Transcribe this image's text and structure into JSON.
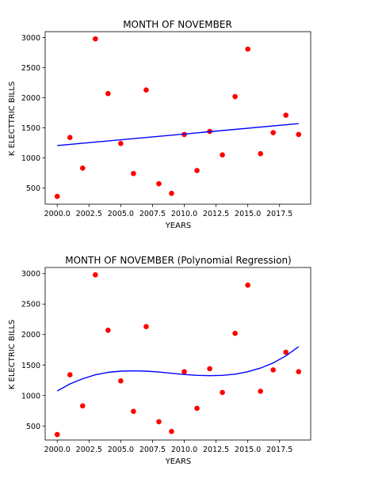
{
  "chart_data": [
    {
      "type": "scatter",
      "title": "MONTH OF NOVEMBER",
      "xlabel": "YEARS",
      "ylabel": "K ELECTTRIC BILLS",
      "xlim": [
        1999.05,
        2019.95
      ],
      "ylim": [
        230,
        3100
      ],
      "xticks": [
        "2000.0",
        "2002.5",
        "2005.0",
        "2007.5",
        "2010.0",
        "2012.5",
        "2015.0",
        "2017.5"
      ],
      "yticks": [
        "500",
        "1000",
        "1500",
        "2000",
        "2500",
        "3000"
      ],
      "grid": false,
      "colors": {
        "points": "#ff0000",
        "fit": "#0000ff"
      },
      "series": [
        {
          "kind": "points",
          "x": [
            2000,
            2001,
            2002,
            2003,
            2004,
            2005,
            2006,
            2007,
            2008,
            2009,
            2010,
            2011,
            2012,
            2013,
            2014,
            2015,
            2016,
            2017,
            2018,
            2019
          ],
          "y": [
            360,
            1340,
            830,
            2980,
            2070,
            1240,
            740,
            2130,
            570,
            410,
            1390,
            790,
            1440,
            1050,
            2020,
            2810,
            1070,
            1420,
            1710,
            1390
          ]
        },
        {
          "kind": "line",
          "x": [
            2000,
            2019
          ],
          "y": [
            1205,
            1570
          ]
        }
      ]
    },
    {
      "type": "scatter",
      "title": "MONTH OF NOVEMBER (Polynomial Regression)",
      "xlabel": "YEARS",
      "ylabel": "K ELECTRIC BILLS",
      "xlim": [
        1999.05,
        2019.95
      ],
      "ylim": [
        270,
        3100
      ],
      "xticks": [
        "2000.0",
        "2002.5",
        "2005.0",
        "2007.5",
        "2010.0",
        "2012.5",
        "2015.0",
        "2017.5"
      ],
      "yticks": [
        "500",
        "1000",
        "1500",
        "2000",
        "2500",
        "3000"
      ],
      "grid": false,
      "colors": {
        "points": "#ff0000",
        "fit": "#0000ff"
      },
      "series": [
        {
          "kind": "points",
          "x": [
            2000,
            2001,
            2002,
            2003,
            2004,
            2005,
            2006,
            2007,
            2008,
            2009,
            2010,
            2011,
            2012,
            2013,
            2014,
            2015,
            2016,
            2017,
            2018,
            2019
          ],
          "y": [
            360,
            1340,
            830,
            2980,
            2070,
            1240,
            740,
            2130,
            570,
            410,
            1390,
            790,
            1440,
            1050,
            2020,
            2810,
            1070,
            1420,
            1710,
            1390
          ]
        },
        {
          "kind": "line",
          "x": [
            2000,
            2001,
            2002,
            2003,
            2004,
            2005,
            2006,
            2007,
            2008,
            2009,
            2010,
            2011,
            2012,
            2013,
            2014,
            2015,
            2016,
            2017,
            2018,
            2019
          ],
          "y": [
            1075,
            1190,
            1275,
            1340,
            1380,
            1400,
            1405,
            1400,
            1385,
            1365,
            1345,
            1330,
            1325,
            1330,
            1350,
            1390,
            1450,
            1535,
            1650,
            1800
          ]
        }
      ]
    }
  ]
}
